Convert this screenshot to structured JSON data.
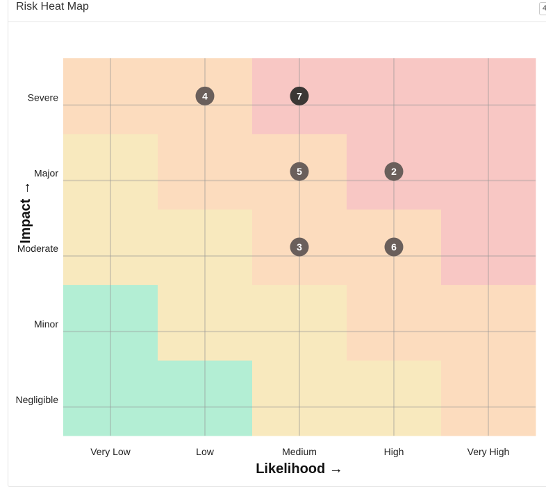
{
  "panel": {
    "title": "Risk Heat Map",
    "menu_button_label": "4"
  },
  "colors": {
    "low": "#b3eed4",
    "medium": "#f8e9be",
    "high": "#fcdcbe",
    "critical": "#f8c7c4",
    "grid": "rgba(150,150,150,0.35)",
    "dot": "#6a5f5b",
    "dot_emphasis": "#3b3735"
  },
  "chart_data": {
    "type": "heatmap",
    "xlabel": "Likelihood →",
    "ylabel": "Impact →",
    "x_categories": [
      "Very Low",
      "Low",
      "Medium",
      "High",
      "Very High"
    ],
    "y_categories": [
      "Negligible",
      "Minor",
      "Moderate",
      "Major",
      "Severe"
    ],
    "cells": [
      [
        "low",
        "low",
        "medium",
        "medium",
        "high"
      ],
      [
        "low",
        "medium",
        "medium",
        "high",
        "high"
      ],
      [
        "medium",
        "medium",
        "high",
        "high",
        "critical"
      ],
      [
        "medium",
        "high",
        "high",
        "critical",
        "critical"
      ],
      [
        "high",
        "high",
        "critical",
        "critical",
        "critical"
      ]
    ],
    "risks": [
      {
        "id": "4",
        "likelihood": "Low",
        "impact": "Severe",
        "emphasis": false
      },
      {
        "id": "7",
        "likelihood": "Medium",
        "impact": "Severe",
        "emphasis": true
      },
      {
        "id": "5",
        "likelihood": "Medium",
        "impact": "Major",
        "emphasis": false
      },
      {
        "id": "2",
        "likelihood": "High",
        "impact": "Major",
        "emphasis": false
      },
      {
        "id": "3",
        "likelihood": "Medium",
        "impact": "Moderate",
        "emphasis": false
      },
      {
        "id": "6",
        "likelihood": "High",
        "impact": "Moderate",
        "emphasis": false
      }
    ],
    "grid": true
  }
}
